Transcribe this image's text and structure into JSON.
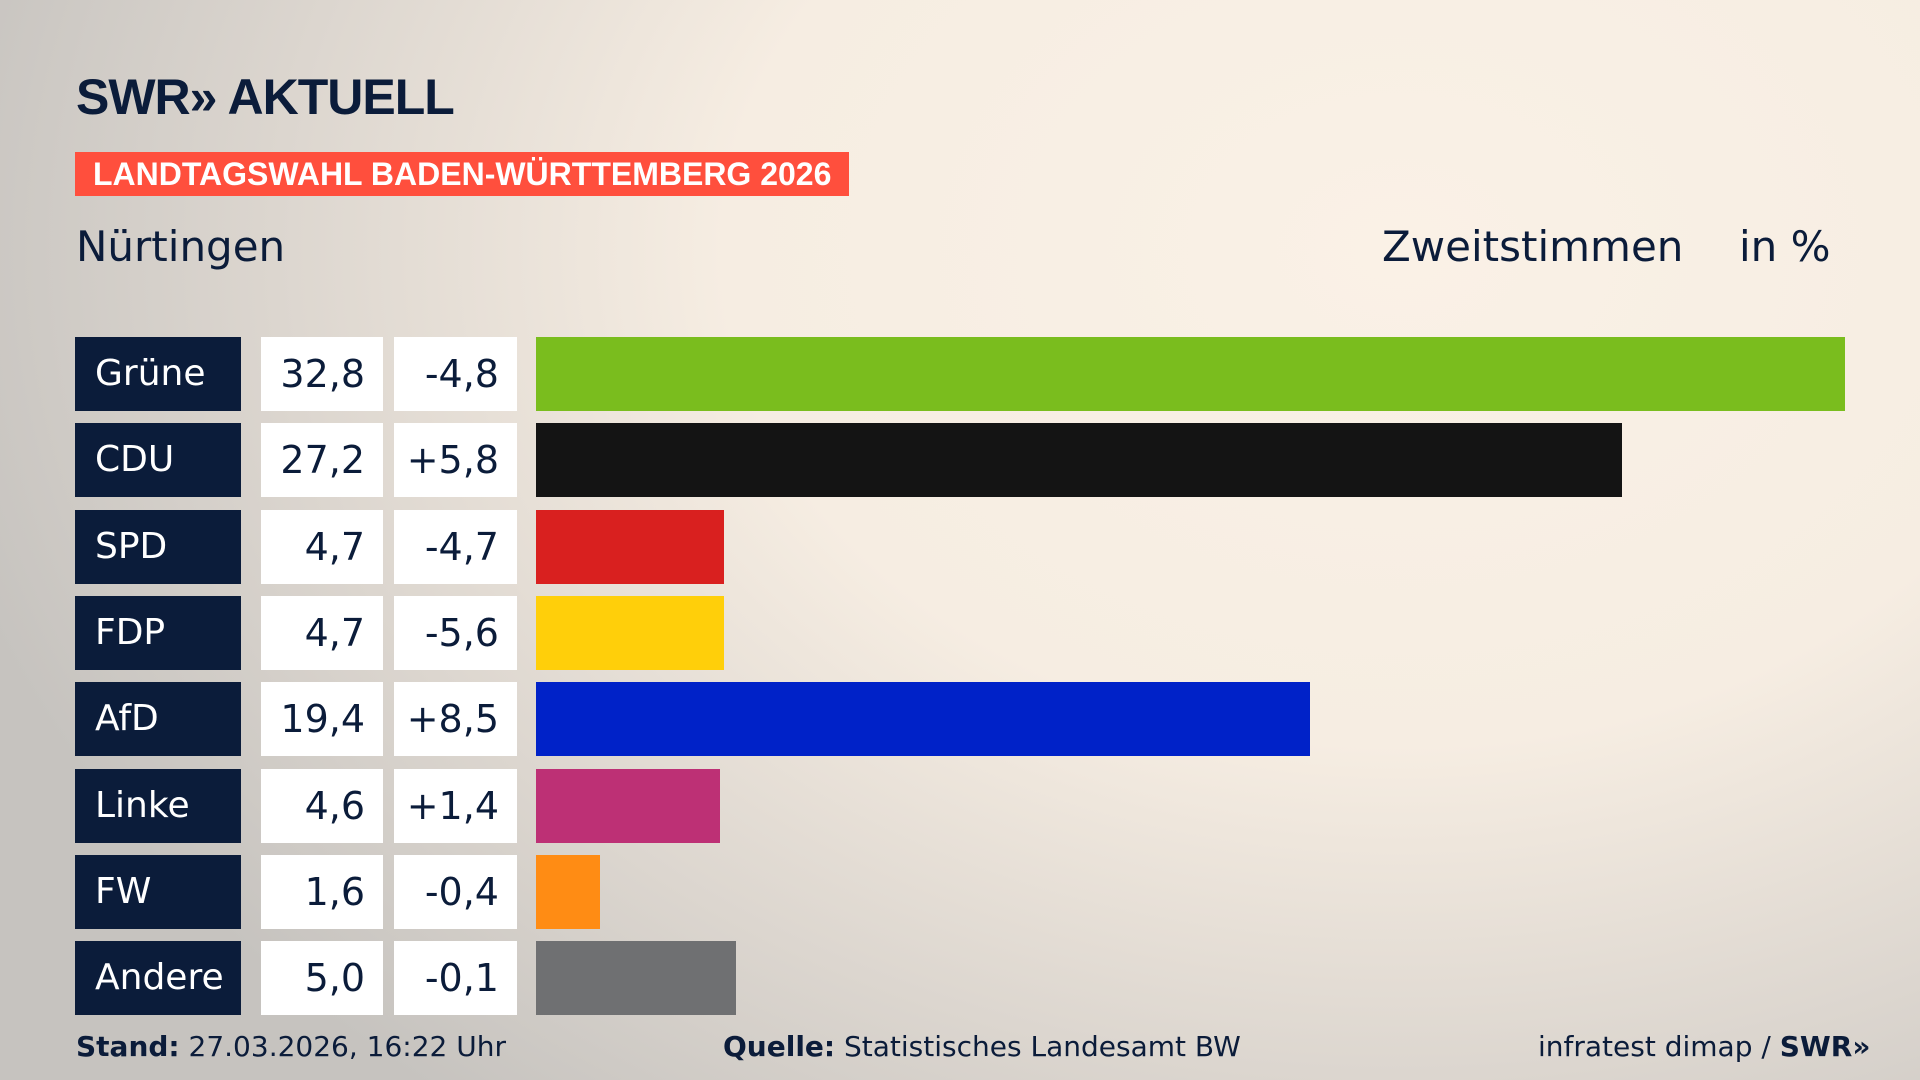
{
  "header": {
    "logo": "SWR» AKTUELL",
    "banner": "LANDTAGSWAHL BADEN-WÜRTTEMBERG 2026",
    "region": "Nürtingen",
    "vote_type": "Zweitstimmen",
    "unit": "in %"
  },
  "chart_data": {
    "type": "bar",
    "orientation": "horizontal",
    "title": "Nürtingen",
    "categories": [
      "Grüne",
      "CDU",
      "SPD",
      "FDP",
      "AfD",
      "Linke",
      "FW",
      "Andere"
    ],
    "values": [
      32.8,
      27.2,
      4.7,
      4.7,
      19.4,
      4.6,
      1.6,
      5.0
    ],
    "value_labels": [
      "32,8",
      "27,2",
      "4,7",
      "4,7",
      "19,4",
      "4,6",
      "1,6",
      "5,0"
    ],
    "diff_labels": [
      "-4,8",
      "+5,8",
      "-4,7",
      "-5,6",
      "+8,5",
      "+1,4",
      "-0,4",
      "-0,1"
    ],
    "colors": [
      "#7abd1e",
      "#141414",
      "#d9201f",
      "#ffcf0a",
      "#0022c8",
      "#bd3075",
      "#ff8c14",
      "#6f7072"
    ],
    "xlim": [
      0,
      32.8
    ],
    "grid": false
  },
  "footer": {
    "stand_label": "Stand:",
    "stand_value": "27.03.2026, 16:22 Uhr",
    "source_label": "Quelle:",
    "source_value": "Statistisches Landesamt BW",
    "credit": "infratest dimap / ",
    "credit_logo": "SWR»"
  }
}
